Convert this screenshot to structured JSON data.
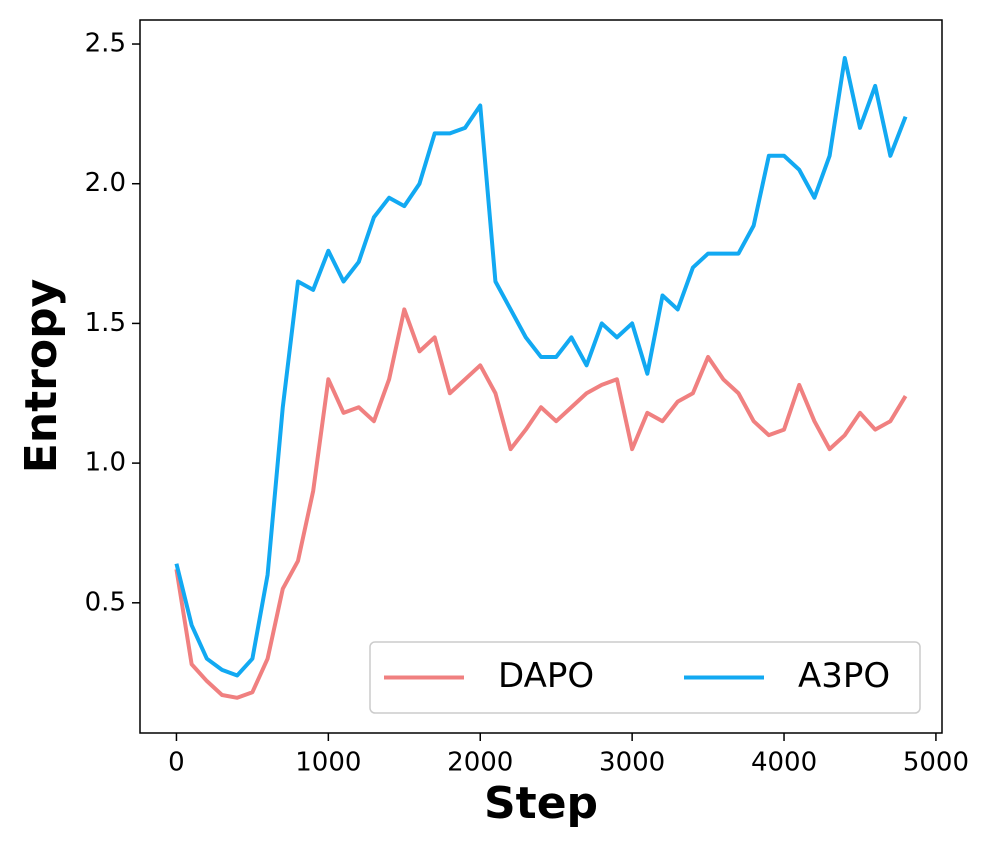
{
  "chart_data": {
    "type": "line",
    "xlabel": "Step",
    "ylabel": "Entropy",
    "x": [
      0,
      100,
      200,
      300,
      400,
      500,
      600,
      700,
      800,
      900,
      1000,
      1100,
      1200,
      1300,
      1400,
      1500,
      1600,
      1700,
      1800,
      1900,
      2000,
      2100,
      2200,
      2300,
      2400,
      2500,
      2600,
      2700,
      2800,
      2900,
      3000,
      3100,
      3200,
      3300,
      3400,
      3500,
      3600,
      3700,
      3800,
      3900,
      4000,
      4100,
      4200,
      4300,
      4400,
      4500,
      4600,
      4700,
      4800
    ],
    "series": [
      {
        "name": "DAPO",
        "color": "#f08080",
        "values": [
          0.62,
          0.28,
          0.22,
          0.17,
          0.16,
          0.18,
          0.3,
          0.55,
          0.65,
          0.9,
          1.3,
          1.18,
          1.2,
          1.15,
          1.3,
          1.55,
          1.4,
          1.45,
          1.25,
          1.3,
          1.35,
          1.25,
          1.05,
          1.12,
          1.2,
          1.15,
          1.2,
          1.25,
          1.28,
          1.3,
          1.05,
          1.18,
          1.15,
          1.22,
          1.25,
          1.38,
          1.3,
          1.25,
          1.15,
          1.1,
          1.12,
          1.28,
          1.15,
          1.05,
          1.1,
          1.18,
          1.12,
          1.15,
          1.24
        ]
      },
      {
        "name": "A3PO",
        "color": "#12a9f2",
        "values": [
          0.64,
          0.42,
          0.3,
          0.26,
          0.24,
          0.3,
          0.6,
          1.2,
          1.65,
          1.62,
          1.76,
          1.65,
          1.72,
          1.88,
          1.95,
          1.92,
          2.0,
          2.18,
          2.18,
          2.2,
          2.28,
          1.65,
          1.55,
          1.45,
          1.38,
          1.38,
          1.45,
          1.35,
          1.5,
          1.45,
          1.5,
          1.32,
          1.6,
          1.55,
          1.7,
          1.75,
          1.75,
          1.75,
          1.85,
          2.1,
          2.1,
          2.05,
          1.95,
          2.1,
          2.45,
          2.2,
          2.35,
          2.1,
          2.24
        ]
      }
    ],
    "xlim": [
      -240,
      5040
    ],
    "xticks": [
      0,
      1000,
      2000,
      3000,
      4000,
      5000
    ],
    "ylim": [
      0.034,
      2.586
    ],
    "yticks": [
      0.5,
      {
        "value": 1,
        "label": "1.0"
      },
      1.5,
      {
        "value": 2,
        "label": "2.0"
      },
      2.5
    ],
    "legend": "lower right"
  }
}
